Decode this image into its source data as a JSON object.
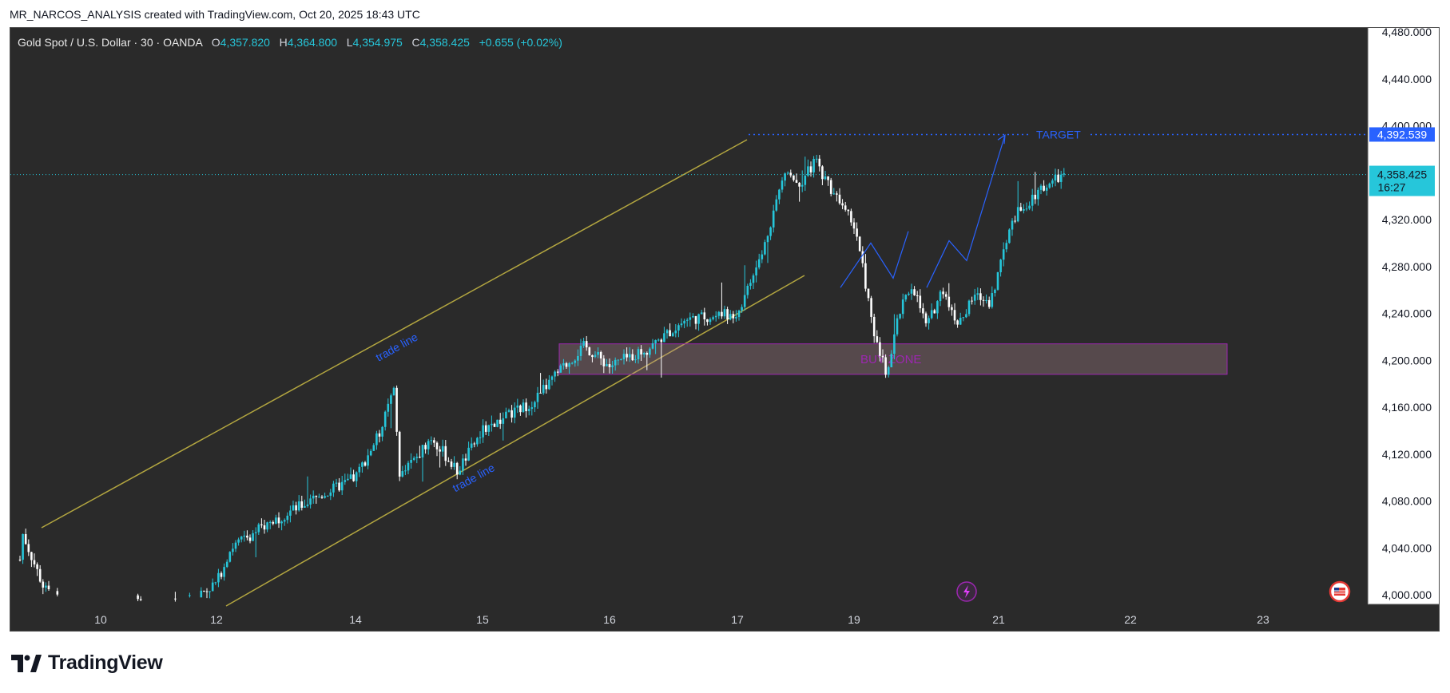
{
  "caption": "MR_NARCOS_ANALYSIS created with TradingView.com, Oct 20, 2025 18:43 UTC",
  "legend": {
    "symbol": "Gold Spot / U.S. Dollar · 30 · OANDA",
    "open_label": "O",
    "open": "4,357.820",
    "high_label": "H",
    "high": "4,364.800",
    "low_label": "L",
    "low": "4,354.975",
    "close_label": "C",
    "close": "4,358.425",
    "change": "+0.655 (+0.02%)"
  },
  "brand": "TradingView",
  "colors": {
    "background": "#2a2a2a",
    "up_candle": "#26c6da",
    "down_candle": "#ffffff",
    "channel": "#b3a640",
    "projection": "#2962ff",
    "buy_zone_border": "#9c27b0",
    "buy_zone_text": "#9c27b0",
    "target_line": "#2962ff",
    "current_price_tag": "#26c6da",
    "target_price_tag": "#2962ff"
  },
  "chart_data": {
    "type": "candlestick",
    "symbol": "Gold Spot / U.S. Dollar",
    "interval": "30",
    "x_tick_labels": [
      "10",
      "12",
      "14",
      "15",
      "16",
      "17",
      "19",
      "21",
      "22",
      "23"
    ],
    "y_tick_labels": [
      "4,000.000",
      "4,040.000",
      "4,080.000",
      "4,120.000",
      "4,160.000",
      "4,200.000",
      "4,240.000",
      "4,280.000",
      "4,320.000",
      "4,400.000",
      "4,440.000",
      "4,480.000"
    ],
    "ylim": [
      3990,
      4498
    ],
    "price_path": [
      [
        "9",
        4030
      ],
      [
        "9",
        4058
      ],
      [
        "9.3",
        4005
      ],
      [
        "9.6",
        3990
      ],
      [
        "10",
        3992
      ],
      [
        "10.6",
        3995
      ],
      [
        "11",
        3993
      ],
      [
        "11.5",
        3995
      ],
      [
        "12",
        4010
      ],
      [
        "12.2",
        4040
      ],
      [
        "12.7",
        4060
      ],
      [
        "13",
        4070
      ],
      [
        "13.5",
        4085
      ],
      [
        "14",
        4100
      ],
      [
        "14.2",
        4140
      ],
      [
        "14.3",
        4175
      ],
      [
        "14.35",
        4100
      ],
      [
        "14.6",
        4135
      ],
      [
        "14.8",
        4105
      ],
      [
        "15",
        4140
      ],
      [
        "15.4",
        4165
      ],
      [
        "15.6",
        4190
      ],
      [
        "15.8",
        4212
      ],
      [
        "16",
        4195
      ],
      [
        "16.3",
        4210
      ],
      [
        "16.6",
        4235
      ],
      [
        "17",
        4240
      ],
      [
        "17.4",
        4290
      ],
      [
        "17.6",
        4330
      ],
      [
        "17.8",
        4365
      ],
      [
        "18",
        4350
      ],
      [
        "18.3",
        4370
      ],
      [
        "18.6",
        4345
      ],
      [
        "18.9",
        4330
      ],
      [
        "19.1",
        4295
      ],
      [
        "19.3",
        4220
      ],
      [
        "19.5",
        4190
      ],
      [
        "19.7",
        4240
      ],
      [
        "19.9",
        4265
      ],
      [
        "20.1",
        4228
      ],
      [
        "20.3",
        4262
      ],
      [
        "20.5",
        4230
      ],
      [
        "20.7",
        4255
      ],
      [
        "20.9",
        4250
      ],
      [
        "21.1",
        4320
      ],
      [
        "21.3",
        4345
      ],
      [
        "21.5",
        4358
      ]
    ],
    "current_price": "4,358.425",
    "time_to_close": "16:27",
    "target_price": "4,392.539",
    "annotations": {
      "upper_trendline_label": "trade line",
      "lower_trendline_label": "trade line",
      "buy_zone_label": "BUY ZONE",
      "target_label": "TARGET",
      "buy_zone_range": [
        4188,
        4214
      ],
      "projection_path": [
        4262,
        4300,
        4270,
        4310,
        4285,
        4392
      ]
    }
  }
}
